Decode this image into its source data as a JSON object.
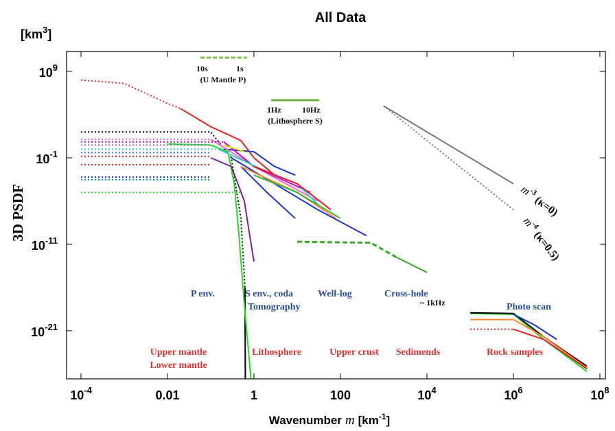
{
  "chart_data": {
    "type": "line",
    "title": "All Data",
    "y_label": "3D PSDF",
    "y_unit": {
      "text": "[km",
      "exp": "3",
      "close": "]"
    },
    "x_label": {
      "text": "Wavenumber",
      "var": "m",
      "unit": "[km",
      "exp": "-1",
      "close": "]"
    },
    "log_x": true,
    "log_y": true,
    "xlim": [
      4.64e-05,
      134000000.0
    ],
    "ylim": [
      2.75e-27,
      200000000000.0
    ],
    "xticks": [
      {
        "value": 0.0001,
        "label": "10",
        "exp": "-4"
      },
      0.01,
      1,
      100,
      {
        "value": 10000,
        "label": "10",
        "exp": "4"
      },
      {
        "value": 1000000,
        "label": "10",
        "exp": "6"
      },
      {
        "value": 100000000,
        "label": "10",
        "exp": "8"
      }
    ],
    "yticks": [
      {
        "value": 1000000000.0,
        "label": "10",
        "exp": "9"
      },
      {
        "value": 0.1,
        "label": "10",
        "exp": "-1"
      },
      {
        "value": 1e-11,
        "label": "10",
        "exp": "-11"
      },
      {
        "value": 1e-21,
        "label": "10",
        "exp": "-21"
      }
    ],
    "annotations": [
      "10s",
      "1s",
      "(U Mantle  P)",
      "1Hz",
      "10Hz",
      "(Lithosphere S)",
      "P env.",
      "S env., coda",
      "Tomography",
      "Well-log",
      "Cross-hole",
      "~ 1kHz",
      "Photo scan",
      "Upper mantle",
      "Lower mantle",
      "Lithosphere",
      "Upper crust",
      "Sedimends",
      "Rock samples"
    ],
    "reference_labels": [
      {
        "var": "m",
        "exp": "-3",
        "note": "(κ=0)"
      },
      {
        "var": "m",
        "exp": "-4",
        "note": "(κ=0.5)"
      }
    ],
    "series": [
      {
        "color": "#e82020",
        "style": "dotted",
        "x": [
          0.0001,
          0.001,
          0.01,
          0.02
        ],
        "values": [
          100000000.0,
          40000000.0,
          200000.0,
          50000.0
        ]
      },
      {
        "color": "#e82020",
        "style": "solid",
        "x": [
          0.02,
          0.1,
          0.5,
          1,
          3
        ],
        "values": [
          50000.0,
          400,
          10,
          0.1,
          0.001
        ]
      },
      {
        "color": "#000000",
        "style": "dotted",
        "x": [
          0.0001,
          0.1,
          0.3,
          0.5,
          0.62
        ],
        "values": [
          100,
          100,
          0.1,
          1e-08,
          1e-16
        ]
      },
      {
        "color": "#000000",
        "style": "solid",
        "x": [
          0.62,
          0.63
        ],
        "values": [
          1e-16,
          3e-27
        ]
      },
      {
        "color": "#22dd22",
        "style": "solid",
        "x": [
          0.01,
          0.1,
          0.25,
          0.35,
          0.45,
          0.6,
          0.85
        ],
        "values": [
          4,
          3,
          0.5,
          0.0001,
          1e-10,
          1e-18,
          3e-27
        ]
      },
      {
        "color": "#22dd22",
        "style": "dotted",
        "x": [
          0.0001,
          0.5
        ],
        "values": [
          1e-05,
          1e-05
        ]
      },
      {
        "color": "#7b1fa2",
        "style": "solid",
        "x": [
          0.1,
          0.3,
          0.6,
          0.8,
          1
        ],
        "values": [
          0.1,
          0.01,
          1e-06,
          1e-10,
          1e-13
        ]
      },
      {
        "color": "#1a33dd",
        "style": "solid",
        "x": [
          0.2,
          1,
          3,
          9
        ],
        "values": [
          1,
          0.5,
          0.01,
          0.001
        ]
      },
      {
        "color": "#1a33dd",
        "style": "solid",
        "x": [
          0.5,
          2,
          9
        ],
        "values": [
          0.01,
          1e-05,
          1e-08
        ]
      },
      {
        "color": "#1a33dd",
        "style": "solid",
        "x": [
          0.3,
          3,
          30,
          400
        ],
        "values": [
          0.1,
          0.0001,
          1e-07,
          1e-10
        ]
      },
      {
        "color": "#ff66cc",
        "style": "dotted",
        "x": [
          0.0001,
          0.1
        ],
        "values": [
          14,
          14
        ]
      },
      {
        "color": "#ff66cc",
        "style": "solid",
        "x": [
          0.1,
          1,
          30
        ],
        "values": [
          14,
          0.01,
          1e-06
        ]
      },
      {
        "color": "#cc00cc",
        "style": "dotted",
        "x": [
          0.0001,
          0.2
        ],
        "values": [
          7,
          7
        ]
      },
      {
        "color": "#cc00cc",
        "style": "solid",
        "x": [
          0.2,
          1,
          20
        ],
        "values": [
          7,
          0.01,
          1e-05
        ]
      },
      {
        "color": "#9966cc",
        "style": "dotted",
        "x": [
          0.0001,
          0.1
        ],
        "values": [
          3,
          3
        ]
      },
      {
        "color": "#33cccc",
        "style": "dotted",
        "x": [
          0.0001,
          0.15
        ],
        "values": [
          1,
          1
        ]
      },
      {
        "color": "#33cccc",
        "style": "solid",
        "x": [
          0.15,
          3,
          10,
          40
        ],
        "values": [
          1,
          0.001,
          0.0001,
          1e-07
        ]
      },
      {
        "color": "#3366ff",
        "style": "dotted",
        "x": [
          0.0001,
          0.1
        ],
        "values": [
          0.4,
          0.4
        ]
      },
      {
        "color": "#e82020",
        "style": "dotted",
        "x": [
          0.0001,
          0.1
        ],
        "values": [
          0.15,
          0.15
        ]
      },
      {
        "color": "#e82020",
        "style": "dotted",
        "x": [
          0.0001,
          0.1
        ],
        "values": [
          0.016,
          0.016
        ]
      },
      {
        "color": "#e82020",
        "style": "solid",
        "x": [
          1,
          10,
          60
        ],
        "values": [
          0.01,
          0.0001,
          1e-07
        ]
      },
      {
        "color": "#1a33dd",
        "style": "dotted",
        "x": [
          0.0001,
          0.1
        ],
        "values": [
          0.0006,
          0.0006
        ]
      },
      {
        "color": "#009999",
        "style": "dotted",
        "x": [
          0.0001,
          0.1
        ],
        "values": [
          0.0003,
          0.0003
        ]
      },
      {
        "color": "#ff8833",
        "style": "solid",
        "x": [
          0.5,
          10,
          80
        ],
        "values": [
          0.01,
          1e-05,
          1e-08
        ]
      },
      {
        "color": "#33bb33",
        "style": "solid",
        "x": [
          1,
          10,
          100
        ],
        "values": [
          0.001,
          1e-05,
          1e-08
        ]
      },
      {
        "color": "#dddd00",
        "style": "solid",
        "x": [
          0.2,
          0.6
        ],
        "values": [
          3,
          0.5
        ]
      },
      {
        "color": "#33aa22",
        "style": "dashed",
        "x": [
          10,
          500,
          2000
        ],
        "values": [
          2e-11,
          1.5e-11,
          3e-13
        ]
      },
      {
        "color": "#33aa22",
        "style": "solid",
        "x": [
          2000,
          10000
        ],
        "values": [
          3e-13,
          5.6e-15
        ]
      },
      {
        "color": "#22dd22",
        "style": "solid",
        "x": [
          100000,
          1000000,
          5000000,
          50000000
        ],
        "values": [
          1e-19,
          8e-20,
          1e-22,
          2e-26
        ]
      },
      {
        "color": "#000000",
        "style": "solid",
        "x": [
          100000,
          1000000,
          5000000,
          50000000
        ],
        "values": [
          1.2e-19,
          1e-19,
          2e-22,
          8e-26
        ]
      },
      {
        "color": "#ff8833",
        "style": "solid",
        "x": [
          100000,
          1000000,
          5000000,
          50000000
        ],
        "values": [
          2e-20,
          2e-20,
          2e-22,
          5e-26
        ]
      },
      {
        "color": "#e82020",
        "style": "dotted",
        "x": [
          100000,
          1000000
        ],
        "values": [
          1.5e-21,
          1.5e-21
        ]
      },
      {
        "color": "#e82020",
        "style": "solid",
        "x": [
          1000000,
          5000000,
          50000000
        ],
        "values": [
          1.5e-21,
          1e-22,
          4e-26
        ]
      },
      {
        "color": "#1a33dd",
        "style": "solid",
        "x": [
          1000000,
          3000000,
          10000000
        ],
        "values": [
          8e-20,
          5e-21,
          1e-22
        ]
      },
      {
        "color": "#777777",
        "style": "solid",
        "x": [
          1000,
          1000000
        ],
        "values": [
          100000,
          0.0001
        ]
      },
      {
        "color": "#777777",
        "style": "dotted",
        "x": [
          1000,
          1000000
        ],
        "values": [
          100000,
          1e-07
        ]
      }
    ]
  }
}
